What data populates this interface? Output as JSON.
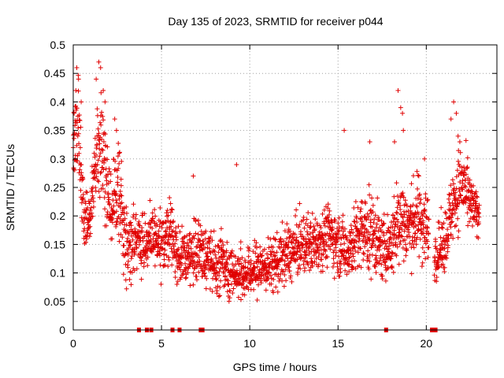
{
  "chart_data": {
    "type": "scatter",
    "title": "Day 135 of 2023, SRMTID for receiver p044",
    "xlabel": "GPS time / hours",
    "ylabel": "SRMTID / TECUs",
    "xlim": [
      0,
      24
    ],
    "ylim": [
      0,
      0.5
    ],
    "xticks": [
      0,
      5,
      10,
      15,
      20
    ],
    "yticks": [
      0,
      0.05,
      0.1,
      0.15,
      0.2,
      0.25,
      0.3,
      0.35,
      0.4,
      0.45,
      0.5
    ],
    "grid": true,
    "marker": "plus",
    "color": "#e00000",
    "series_name": "SRMTID",
    "profile": [
      [
        0.0,
        0.31,
        0.09
      ],
      [
        0.3,
        0.37,
        0.08
      ],
      [
        0.6,
        0.19,
        0.05
      ],
      [
        1.0,
        0.2,
        0.05
      ],
      [
        1.4,
        0.33,
        0.1
      ],
      [
        1.7,
        0.3,
        0.1
      ],
      [
        2.1,
        0.2,
        0.07
      ],
      [
        2.5,
        0.25,
        0.08
      ],
      [
        3.0,
        0.15,
        0.06
      ],
      [
        3.5,
        0.16,
        0.05
      ],
      [
        4.0,
        0.15,
        0.05
      ],
      [
        4.5,
        0.16,
        0.05
      ],
      [
        5.0,
        0.15,
        0.05
      ],
      [
        5.5,
        0.17,
        0.06
      ],
      [
        6.0,
        0.13,
        0.05
      ],
      [
        6.5,
        0.13,
        0.05
      ],
      [
        7.0,
        0.14,
        0.06
      ],
      [
        7.5,
        0.13,
        0.05
      ],
      [
        8.0,
        0.11,
        0.05
      ],
      [
        8.5,
        0.12,
        0.06
      ],
      [
        9.0,
        0.1,
        0.04
      ],
      [
        9.5,
        0.1,
        0.04
      ],
      [
        10.0,
        0.1,
        0.04
      ],
      [
        10.5,
        0.11,
        0.05
      ],
      [
        11.0,
        0.11,
        0.04
      ],
      [
        11.5,
        0.12,
        0.05
      ],
      [
        12.0,
        0.13,
        0.05
      ],
      [
        12.5,
        0.14,
        0.05
      ],
      [
        13.0,
        0.15,
        0.05
      ],
      [
        13.5,
        0.15,
        0.05
      ],
      [
        14.0,
        0.16,
        0.05
      ],
      [
        14.5,
        0.17,
        0.05
      ],
      [
        15.0,
        0.15,
        0.05
      ],
      [
        15.5,
        0.14,
        0.05
      ],
      [
        16.0,
        0.16,
        0.06
      ],
      [
        16.5,
        0.17,
        0.07
      ],
      [
        17.0,
        0.17,
        0.07
      ],
      [
        17.5,
        0.14,
        0.05
      ],
      [
        18.0,
        0.15,
        0.06
      ],
      [
        18.5,
        0.2,
        0.08
      ],
      [
        19.0,
        0.18,
        0.06
      ],
      [
        19.5,
        0.2,
        0.07
      ],
      [
        20.0,
        0.18,
        0.07
      ],
      [
        20.4,
        0.13,
        0.04
      ],
      [
        21.0,
        0.15,
        0.05
      ],
      [
        21.5,
        0.22,
        0.06
      ],
      [
        22.0,
        0.26,
        0.07
      ],
      [
        22.5,
        0.22,
        0.05
      ],
      [
        23.0,
        0.2,
        0.03
      ]
    ],
    "peaks": [
      [
        0.05,
        0.38
      ],
      [
        0.15,
        0.42
      ],
      [
        0.2,
        0.46
      ],
      [
        0.3,
        0.44
      ],
      [
        0.45,
        0.4
      ],
      [
        1.3,
        0.44
      ],
      [
        1.45,
        0.47
      ],
      [
        1.55,
        0.46
      ],
      [
        1.7,
        0.42
      ],
      [
        1.8,
        0.4
      ],
      [
        2.35,
        0.37
      ],
      [
        2.45,
        0.35
      ],
      [
        2.6,
        0.31
      ],
      [
        6.8,
        0.27
      ],
      [
        9.25,
        0.29
      ],
      [
        15.35,
        0.35
      ],
      [
        16.8,
        0.33
      ],
      [
        18.2,
        0.33
      ],
      [
        18.4,
        0.42
      ],
      [
        18.55,
        0.39
      ],
      [
        18.65,
        0.38
      ],
      [
        18.7,
        0.35
      ],
      [
        19.9,
        0.3
      ],
      [
        21.4,
        0.37
      ],
      [
        21.55,
        0.4
      ],
      [
        21.7,
        0.38
      ],
      [
        21.8,
        0.34
      ],
      [
        21.9,
        0.33
      ]
    ],
    "zero_hours": [
      3.7,
      4.15,
      4.4,
      5.6,
      6.0,
      7.2,
      7.3,
      17.7,
      20.3,
      20.4,
      20.5
    ]
  }
}
